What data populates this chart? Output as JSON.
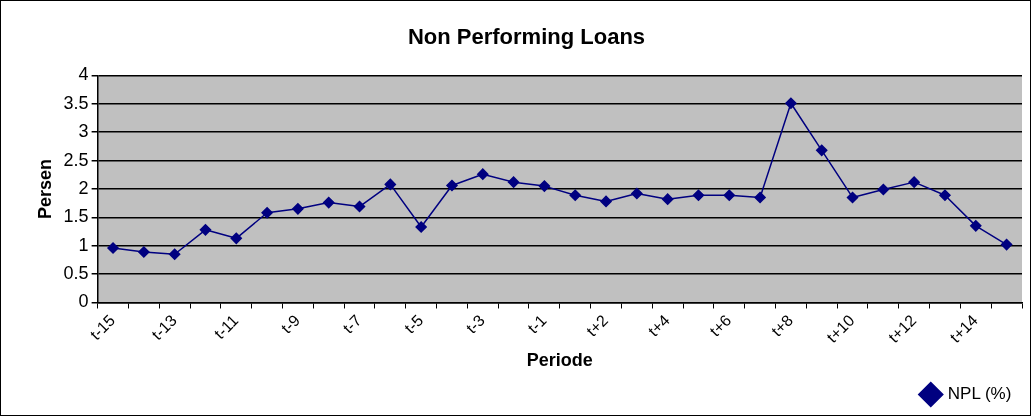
{
  "chart_data": {
    "type": "line",
    "title": "Non Performing Loans",
    "xlabel": "Periode",
    "ylabel": "Persen",
    "categories": [
      "t-15",
      null,
      "t-13",
      null,
      "t-11",
      null,
      "t-9",
      null,
      "t-7",
      null,
      "t-5",
      null,
      "t-3",
      null,
      "t-1",
      null,
      "t+2",
      null,
      "t+4",
      null,
      "t+6",
      null,
      "t+8",
      null,
      "t+10",
      null,
      "t+12",
      null,
      "t+14",
      null
    ],
    "series": [
      {
        "name": "NPL (%)",
        "color": "#000080",
        "values": [
          0.96,
          0.89,
          0.85,
          1.28,
          1.13,
          1.58,
          1.65,
          1.76,
          1.69,
          2.08,
          1.33,
          2.06,
          2.26,
          2.12,
          2.05,
          1.89,
          1.78,
          1.92,
          1.82,
          1.89,
          1.89,
          1.85,
          3.51,
          2.68,
          1.85,
          1.99,
          2.12,
          1.89,
          1.35,
          1.02
        ]
      }
    ],
    "ylim": [
      0,
      4
    ],
    "yticks": [
      0,
      0.5,
      1,
      1.5,
      2,
      2.5,
      3,
      3.5,
      4
    ],
    "grid": "y",
    "legend": "bottom right",
    "marker": "diamond",
    "line_style": "solid"
  }
}
